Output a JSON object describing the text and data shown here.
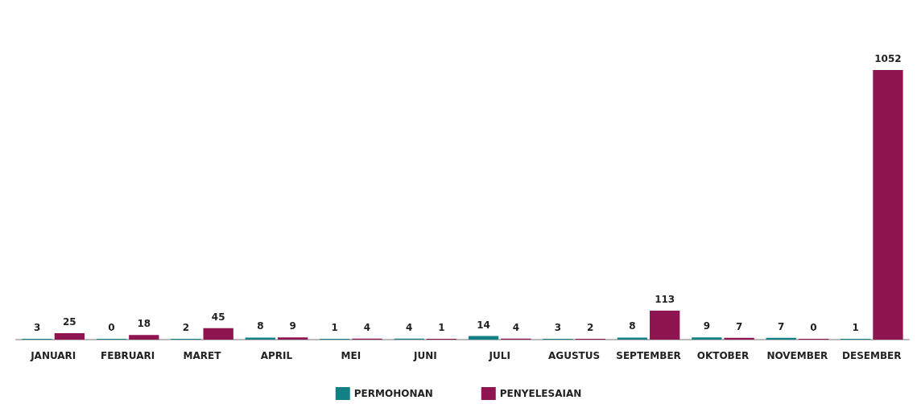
{
  "chart_data": {
    "type": "bar",
    "categories": [
      "JANUARI",
      "FEBRUARI",
      "MARET",
      "APRIL",
      "MEI",
      "JUNI",
      "JULI",
      "AGUSTUS",
      "SEPTEMBER",
      "OKTOBER",
      "NOVEMBER",
      "DESEMBER"
    ],
    "series": [
      {
        "name": "PERMOHONAN",
        "color": "#138086",
        "values": [
          3,
          0,
          2,
          8,
          1,
          4,
          14,
          3,
          8,
          9,
          7,
          1
        ]
      },
      {
        "name": "PENYELESAIAN",
        "color": "#8e1550",
        "values": [
          25,
          18,
          45,
          9,
          4,
          1,
          4,
          2,
          113,
          7,
          0,
          1052
        ]
      }
    ],
    "data_labels": true,
    "legend": "bottom"
  }
}
